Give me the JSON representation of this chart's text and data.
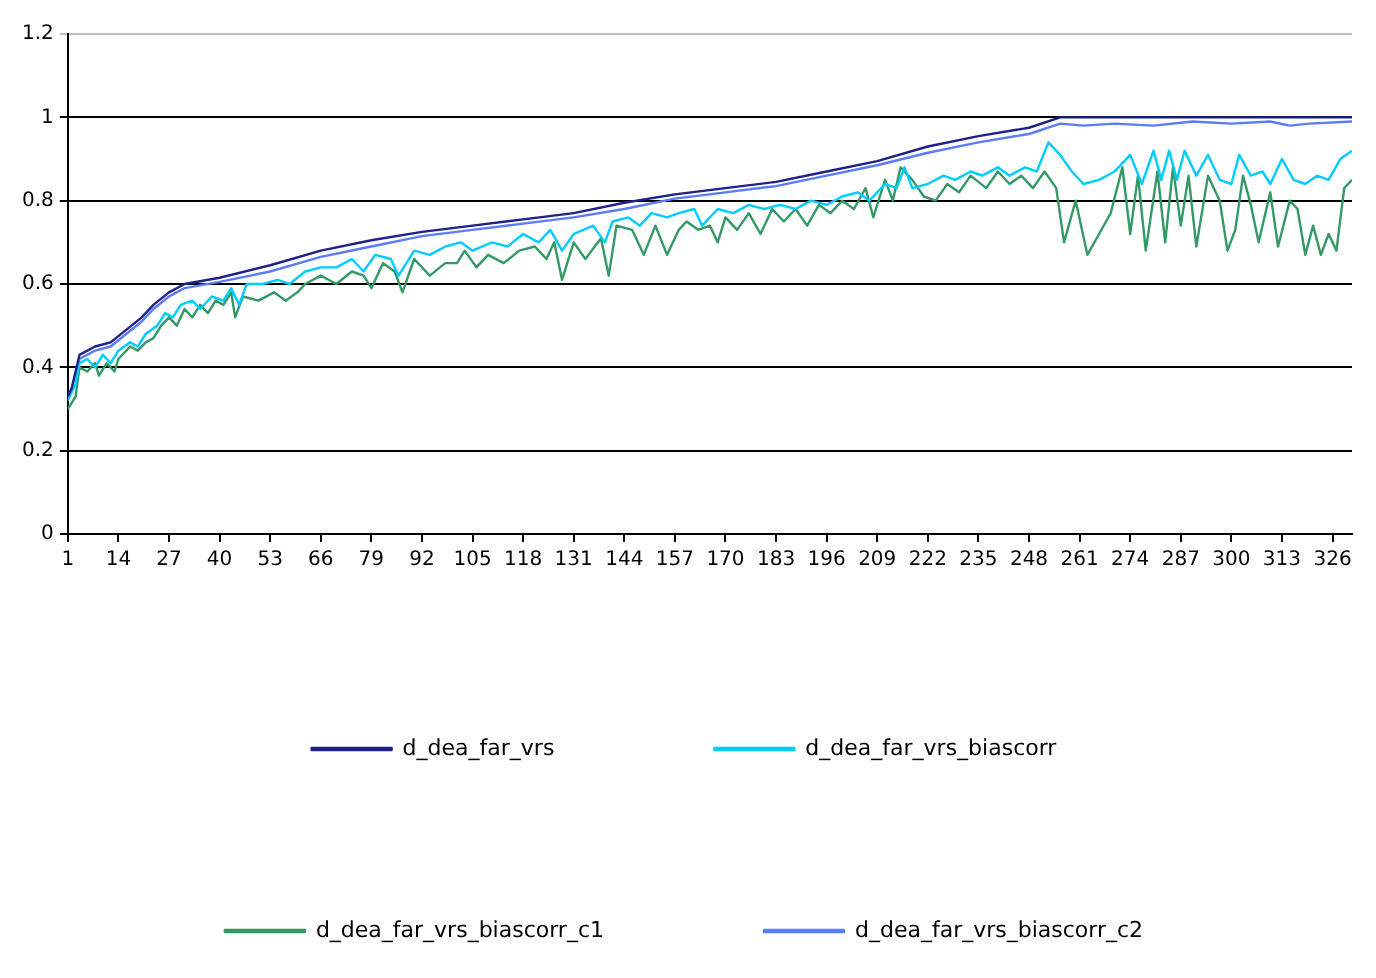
{
  "chart_data": {
    "type": "line",
    "xlim": [
      1,
      331
    ],
    "xticks": [
      1,
      14,
      27,
      40,
      53,
      66,
      79,
      92,
      105,
      118,
      131,
      144,
      157,
      170,
      183,
      196,
      209,
      222,
      235,
      248,
      261,
      274,
      287,
      300,
      313,
      326
    ],
    "ylim": [
      0,
      1.2
    ],
    "yticks": [
      0,
      0.2,
      0.4,
      0.6,
      0.8,
      1,
      1.2
    ],
    "grid": "y",
    "legend": "bottom",
    "marker": "none",
    "line_style": "solid",
    "series": [
      {
        "name": "d_dea_far_vrs",
        "color": "#20208a",
        "x": [
          1,
          2,
          4,
          8,
          12,
          16,
          20,
          23,
          27,
          31,
          40,
          53,
          66,
          79,
          92,
          105,
          118,
          131,
          144,
          157,
          170,
          183,
          196,
          209,
          222,
          235,
          248,
          256,
          331
        ],
        "values": [
          0.33,
          0.35,
          0.43,
          0.45,
          0.46,
          0.49,
          0.52,
          0.55,
          0.58,
          0.6,
          0.615,
          0.645,
          0.68,
          0.705,
          0.725,
          0.74,
          0.755,
          0.77,
          0.795,
          0.815,
          0.83,
          0.845,
          0.87,
          0.895,
          0.93,
          0.955,
          0.975,
          1.0,
          1.0
        ]
      },
      {
        "name": "d_dea_far_vrs_biascorr",
        "color": "#00ccff",
        "x": [
          1,
          3,
          4,
          6,
          8,
          10,
          12,
          14,
          17,
          19,
          21,
          24,
          26,
          28,
          30,
          33,
          35,
          38,
          41,
          43,
          45,
          47,
          51,
          55,
          58,
          62,
          66,
          70,
          74,
          77,
          80,
          84,
          86,
          90,
          94,
          98,
          102,
          105,
          110,
          114,
          118,
          122,
          125,
          128,
          131,
          136,
          139,
          141,
          145,
          148,
          151,
          155,
          158,
          162,
          164,
          168,
          172,
          176,
          180,
          184,
          188,
          192,
          196,
          200,
          204,
          207,
          211,
          214,
          216,
          218,
          222,
          226,
          229,
          233,
          236,
          240,
          243,
          247,
          250,
          253,
          256,
          259,
          262,
          266,
          270,
          274,
          277,
          280,
          282,
          284,
          286,
          288,
          291,
          294,
          297,
          300,
          302,
          305,
          308,
          310,
          313,
          316,
          319,
          322,
          325,
          328,
          331
        ],
        "values": [
          0.32,
          0.36,
          0.41,
          0.42,
          0.4,
          0.43,
          0.41,
          0.44,
          0.46,
          0.45,
          0.48,
          0.5,
          0.53,
          0.52,
          0.55,
          0.56,
          0.54,
          0.57,
          0.56,
          0.59,
          0.55,
          0.6,
          0.6,
          0.61,
          0.6,
          0.63,
          0.64,
          0.64,
          0.66,
          0.63,
          0.67,
          0.66,
          0.62,
          0.68,
          0.67,
          0.69,
          0.7,
          0.68,
          0.7,
          0.69,
          0.72,
          0.7,
          0.73,
          0.68,
          0.72,
          0.74,
          0.7,
          0.75,
          0.76,
          0.74,
          0.77,
          0.76,
          0.77,
          0.78,
          0.74,
          0.78,
          0.77,
          0.79,
          0.78,
          0.79,
          0.78,
          0.8,
          0.79,
          0.81,
          0.82,
          0.8,
          0.84,
          0.83,
          0.88,
          0.83,
          0.84,
          0.86,
          0.85,
          0.87,
          0.86,
          0.88,
          0.86,
          0.88,
          0.87,
          0.94,
          0.91,
          0.87,
          0.84,
          0.85,
          0.87,
          0.91,
          0.84,
          0.92,
          0.85,
          0.92,
          0.85,
          0.92,
          0.86,
          0.91,
          0.85,
          0.84,
          0.91,
          0.86,
          0.87,
          0.84,
          0.9,
          0.85,
          0.84,
          0.86,
          0.85,
          0.9,
          0.92
        ]
      },
      {
        "name": "d_dea_far_vrs_biascorr_c1",
        "color": "#339966",
        "x": [
          1,
          3,
          4,
          6,
          8,
          9,
          11,
          13,
          14,
          17,
          19,
          21,
          23,
          25,
          27,
          29,
          31,
          33,
          35,
          37,
          39,
          41,
          43,
          44,
          46,
          50,
          54,
          57,
          60,
          62,
          66,
          70,
          74,
          77,
          79,
          82,
          85,
          87,
          90,
          94,
          98,
          101,
          103,
          106,
          109,
          113,
          117,
          121,
          124,
          126,
          128,
          131,
          134,
          138,
          140,
          142,
          146,
          149,
          152,
          155,
          158,
          160,
          163,
          166,
          168,
          170,
          173,
          176,
          179,
          182,
          185,
          188,
          191,
          194,
          197,
          200,
          203,
          206,
          208,
          211,
          213,
          215,
          218,
          221,
          224,
          227,
          230,
          233,
          237,
          240,
          243,
          246,
          249,
          252,
          255,
          257,
          260,
          263,
          266,
          269,
          272,
          274,
          276,
          278,
          281,
          283,
          285,
          287,
          289,
          291,
          294,
          297,
          299,
          301,
          303,
          305,
          307,
          310,
          312,
          315,
          317,
          319,
          321,
          323,
          325,
          327,
          329,
          331
        ],
        "values": [
          0.3,
          0.33,
          0.4,
          0.39,
          0.41,
          0.38,
          0.41,
          0.39,
          0.42,
          0.45,
          0.44,
          0.46,
          0.47,
          0.5,
          0.52,
          0.5,
          0.54,
          0.52,
          0.55,
          0.53,
          0.56,
          0.55,
          0.58,
          0.52,
          0.57,
          0.56,
          0.58,
          0.56,
          0.58,
          0.6,
          0.62,
          0.6,
          0.63,
          0.62,
          0.59,
          0.65,
          0.63,
          0.58,
          0.66,
          0.62,
          0.65,
          0.65,
          0.68,
          0.64,
          0.67,
          0.65,
          0.68,
          0.69,
          0.66,
          0.7,
          0.61,
          0.7,
          0.66,
          0.71,
          0.62,
          0.74,
          0.73,
          0.67,
          0.74,
          0.67,
          0.73,
          0.75,
          0.73,
          0.74,
          0.7,
          0.76,
          0.73,
          0.77,
          0.72,
          0.78,
          0.75,
          0.78,
          0.74,
          0.79,
          0.77,
          0.8,
          0.78,
          0.83,
          0.76,
          0.85,
          0.8,
          0.88,
          0.85,
          0.81,
          0.8,
          0.84,
          0.82,
          0.86,
          0.83,
          0.87,
          0.84,
          0.86,
          0.83,
          0.87,
          0.83,
          0.7,
          0.8,
          0.67,
          0.72,
          0.77,
          0.88,
          0.72,
          0.86,
          0.68,
          0.87,
          0.7,
          0.88,
          0.74,
          0.86,
          0.69,
          0.86,
          0.8,
          0.68,
          0.73,
          0.86,
          0.79,
          0.7,
          0.82,
          0.69,
          0.8,
          0.78,
          0.67,
          0.74,
          0.67,
          0.72,
          0.68,
          0.83,
          0.85
        ]
      },
      {
        "name": "d_dea_far_vrs_biascorr_c2",
        "color": "#5b7cf7",
        "x": [
          1,
          2,
          4,
          8,
          12,
          16,
          20,
          23,
          27,
          31,
          40,
          53,
          66,
          79,
          92,
          105,
          118,
          131,
          144,
          157,
          170,
          183,
          196,
          209,
          222,
          235,
          248,
          256,
          262,
          270,
          280,
          290,
          300,
          310,
          315,
          320,
          331
        ],
        "values": [
          0.33,
          0.35,
          0.42,
          0.44,
          0.45,
          0.48,
          0.51,
          0.54,
          0.57,
          0.59,
          0.605,
          0.63,
          0.665,
          0.69,
          0.715,
          0.73,
          0.745,
          0.76,
          0.78,
          0.805,
          0.82,
          0.835,
          0.86,
          0.885,
          0.915,
          0.94,
          0.96,
          0.985,
          0.98,
          0.985,
          0.98,
          0.99,
          0.985,
          0.99,
          0.98,
          0.985,
          0.99
        ]
      }
    ]
  }
}
